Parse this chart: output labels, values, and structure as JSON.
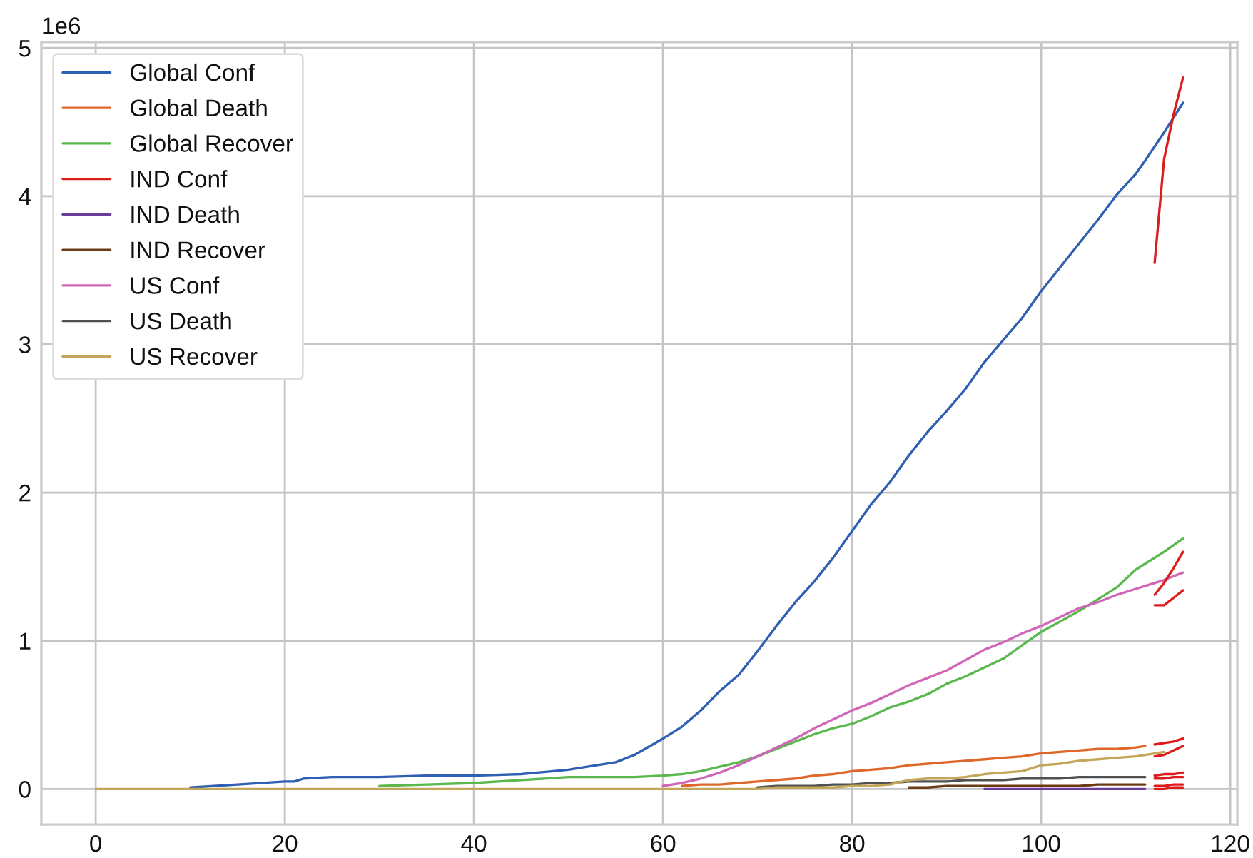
{
  "chart_data": {
    "type": "line",
    "x": [
      0,
      5,
      10,
      15,
      20,
      21,
      22,
      25,
      30,
      35,
      40,
      45,
      50,
      52,
      55,
      57,
      60,
      62,
      64,
      66,
      68,
      70,
      72,
      74,
      76,
      78,
      80,
      82,
      84,
      86,
      88,
      90,
      92,
      94,
      96,
      98,
      100,
      102,
      104,
      106,
      108,
      110,
      111,
      113,
      115
    ],
    "series": [
      {
        "name": "Global Conf",
        "color": "#2f5fb3",
        "values": [
          null,
          null,
          0.01,
          0.03,
          0.05,
          0.05,
          0.07,
          0.08,
          0.08,
          0.09,
          0.09,
          0.1,
          0.13,
          0.15,
          0.18,
          0.23,
          0.34,
          0.42,
          0.53,
          0.66,
          0.77,
          0.93,
          1.1,
          1.26,
          1.4,
          1.56,
          1.74,
          1.92,
          2.07,
          2.25,
          2.41,
          2.55,
          2.7,
          2.88,
          3.03,
          3.18,
          3.36,
          3.52,
          3.68,
          3.84,
          4.01,
          4.15,
          4.24,
          4.43,
          4.63
        ]
      },
      {
        "name": "Global Death",
        "color": "#e0672a",
        "values": [
          null,
          null,
          null,
          null,
          null,
          null,
          null,
          null,
          null,
          null,
          null,
          null,
          null,
          null,
          null,
          null,
          null,
          0.02,
          0.03,
          0.03,
          0.04,
          0.05,
          0.06,
          0.07,
          0.09,
          0.1,
          0.12,
          0.13,
          0.14,
          0.16,
          0.17,
          0.18,
          0.19,
          0.2,
          0.21,
          0.22,
          0.24,
          0.25,
          0.26,
          0.27,
          0.27,
          0.28,
          0.29,
          null,
          null
        ]
      },
      {
        "name": "Global Recover",
        "color": "#5bb84f",
        "values": [
          null,
          null,
          null,
          null,
          null,
          null,
          null,
          null,
          0.02,
          0.03,
          0.04,
          0.06,
          0.08,
          0.08,
          0.08,
          0.08,
          0.09,
          0.1,
          0.12,
          0.15,
          0.18,
          0.22,
          0.27,
          0.32,
          0.37,
          0.41,
          0.44,
          0.49,
          0.55,
          0.59,
          0.64,
          0.71,
          0.76,
          0.82,
          0.88,
          0.97,
          1.06,
          1.13,
          1.2,
          1.28,
          1.36,
          1.48,
          1.52,
          1.6,
          1.69
        ]
      },
      {
        "name": "IND Conf",
        "color": "#dd1c1c",
        "x": [
          112,
          113,
          114,
          115
        ],
        "values": [
          3.55,
          4.25,
          4.55,
          4.8
        ]
      },
      {
        "name": "IND Death",
        "color": "#6a3d9a",
        "values": [
          null,
          null,
          null,
          null,
          null,
          null,
          null,
          null,
          null,
          null,
          null,
          null,
          null,
          null,
          null,
          null,
          null,
          null,
          null,
          null,
          null,
          null,
          null,
          null,
          null,
          null,
          null,
          null,
          null,
          null,
          null,
          null,
          null,
          0,
          0,
          0,
          0,
          0,
          0,
          0,
          0,
          0,
          0,
          null,
          null
        ]
      },
      {
        "name": "IND Recover",
        "color": "#6b3a12",
        "values": [
          null,
          null,
          null,
          null,
          null,
          null,
          null,
          null,
          null,
          null,
          null,
          null,
          null,
          null,
          null,
          null,
          null,
          null,
          null,
          null,
          null,
          null,
          null,
          null,
          null,
          null,
          null,
          null,
          null,
          0.01,
          0.01,
          0.02,
          0.02,
          0.02,
          0.02,
          0.02,
          0.02,
          0.02,
          0.02,
          0.03,
          0.03,
          0.03,
          0.03,
          null,
          null
        ]
      },
      {
        "name": "US Conf",
        "color": "#d066b8",
        "values": [
          null,
          null,
          null,
          null,
          null,
          null,
          null,
          null,
          null,
          null,
          null,
          null,
          null,
          null,
          null,
          null,
          0.02,
          0.04,
          0.07,
          0.11,
          0.16,
          0.22,
          0.28,
          0.34,
          0.41,
          0.47,
          0.53,
          0.58,
          0.64,
          0.7,
          0.75,
          0.8,
          0.87,
          0.94,
          0.99,
          1.05,
          1.1,
          1.16,
          1.22,
          1.26,
          1.31,
          1.35,
          1.37,
          1.41,
          1.46
        ]
      },
      {
        "name": "US Death",
        "color": "#505050",
        "values": [
          null,
          null,
          null,
          null,
          null,
          null,
          null,
          null,
          null,
          null,
          null,
          null,
          null,
          null,
          null,
          null,
          null,
          null,
          null,
          null,
          null,
          0.01,
          0.02,
          0.02,
          0.02,
          0.03,
          0.03,
          0.04,
          0.04,
          0.05,
          0.05,
          0.05,
          0.06,
          0.06,
          0.06,
          0.07,
          0.07,
          0.07,
          0.08,
          0.08,
          0.08,
          0.08,
          0.08,
          null,
          null
        ]
      },
      {
        "name": "US Recover",
        "color": "#c3a65a",
        "values": [
          0,
          0,
          0,
          0,
          0,
          0,
          0,
          0,
          0,
          0,
          0,
          0,
          0,
          0,
          0,
          0,
          0,
          0,
          0,
          0,
          0,
          0,
          0.01,
          0.01,
          0.01,
          0.01,
          0.02,
          0.02,
          0.03,
          0.06,
          0.07,
          0.07,
          0.08,
          0.1,
          0.11,
          0.12,
          0.16,
          0.17,
          0.19,
          0.2,
          0.21,
          0.22,
          0.23,
          0.25,
          null
        ]
      },
      {
        "color": "#dd1c1c",
        "x": [
          112,
          113,
          114,
          115
        ],
        "values": [
          1.31,
          1.39,
          1.49,
          1.6
        ]
      },
      {
        "color": "#dd1c1c",
        "x": [
          112,
          113,
          114,
          115
        ],
        "values": [
          1.24,
          1.24,
          1.29,
          1.34
        ]
      },
      {
        "color": "#dd1c1c",
        "x": [
          112,
          113,
          114,
          115
        ],
        "values": [
          0.3,
          0.31,
          0.32,
          0.34
        ]
      },
      {
        "color": "#dd1c1c",
        "x": [
          112,
          113,
          114,
          115
        ],
        "values": [
          0.22,
          0.23,
          0.26,
          0.29
        ]
      },
      {
        "color": "#dd1c1c",
        "x": [
          112,
          113,
          114,
          115
        ],
        "values": [
          0.09,
          0.1,
          0.1,
          0.11
        ]
      },
      {
        "color": "#dd1c1c",
        "x": [
          112,
          113,
          114,
          115
        ],
        "values": [
          0.07,
          0.07,
          0.08,
          0.08
        ]
      },
      {
        "color": "#dd1c1c",
        "x": [
          112,
          113,
          114,
          115
        ],
        "values": [
          0.02,
          0.02,
          0.03,
          0.03
        ]
      },
      {
        "color": "#dd1c1c",
        "x": [
          112,
          113,
          114,
          115
        ],
        "values": [
          0,
          0,
          0.01,
          0.01
        ]
      }
    ],
    "xlim": [
      -5.75,
      120.75
    ],
    "ylim": [
      -0.24,
      5.04
    ],
    "xticks": [
      0,
      20,
      40,
      60,
      80,
      100,
      120
    ],
    "yticks": [
      0,
      1,
      2,
      3,
      4,
      5
    ],
    "grid": true,
    "legend": "top left",
    "annotations": [
      "1e6"
    ]
  }
}
